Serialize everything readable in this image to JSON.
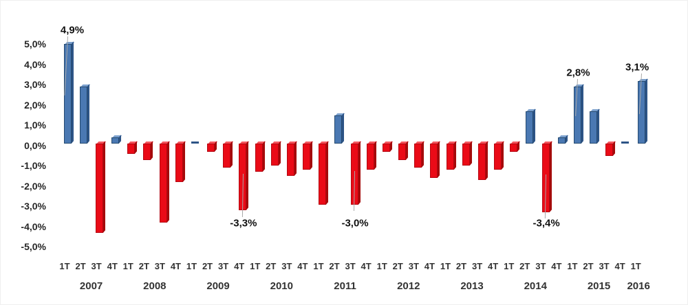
{
  "chart_data": {
    "type": "bar",
    "title": "",
    "xlabel": "",
    "ylabel": "",
    "unit": "%",
    "decimal_style": "comma",
    "grid": false,
    "legend": false,
    "ylim": [
      -5,
      5
    ],
    "y_ticks": [
      "5,0%",
      "4,0%",
      "3,0%",
      "2,0%",
      "1,0%",
      "0,0%",
      "-1,0%",
      "-2,0%",
      "-3,0%",
      "-4,0%",
      "-5,0%"
    ],
    "y_tick_values": [
      5,
      4,
      3,
      2,
      1,
      0,
      -1,
      -2,
      -3,
      -4,
      -5
    ],
    "colors": {
      "positive_bar": "#4a78b2",
      "positive_bar_dark": "#2d5486",
      "negative_bar": "#ea0b17",
      "negative_bar_dark": "#a50b0b",
      "label_text": "#111111",
      "axis_text": "#333333"
    },
    "years": [
      {
        "label": "2007",
        "quarters": [
          "1T",
          "2T",
          "3T",
          "4T"
        ],
        "values": [
          4.9,
          2.8,
          -4.4,
          0.3
        ]
      },
      {
        "label": "2008",
        "quarters": [
          "1T",
          "2T",
          "3T",
          "4T"
        ],
        "values": [
          -0.5,
          -0.8,
          -3.9,
          -1.9
        ]
      },
      {
        "label": "2009",
        "quarters": [
          "1T",
          "2T",
          "3T",
          "4T"
        ],
        "values": [
          0.0,
          -0.4,
          -1.2,
          -3.3
        ]
      },
      {
        "label": "2010",
        "quarters": [
          "1T",
          "2T",
          "3T",
          "4T"
        ],
        "values": [
          -1.4,
          -1.1,
          -1.6,
          -1.3
        ]
      },
      {
        "label": "2011",
        "quarters": [
          "1T",
          "2T",
          "3T",
          "4T"
        ],
        "values": [
          -3.0,
          1.4,
          -3.0,
          -1.3
        ]
      },
      {
        "label": "2012",
        "quarters": [
          "1T",
          "2T",
          "3T",
          "4T"
        ],
        "values": [
          -0.4,
          -0.8,
          -1.2,
          -1.7
        ]
      },
      {
        "label": "2013",
        "quarters": [
          "1T",
          "2T",
          "3T",
          "4T"
        ],
        "values": [
          -1.3,
          -1.1,
          -1.8,
          -1.3
        ]
      },
      {
        "label": "2014",
        "quarters": [
          "1T",
          "2T",
          "3T",
          "4T"
        ],
        "values": [
          -0.4,
          1.6,
          -3.4,
          0.3
        ]
      },
      {
        "label": "2015",
        "quarters": [
          "1T",
          "2T",
          "3T",
          "4T"
        ],
        "values": [
          2.8,
          1.6,
          -0.6,
          0.0
        ]
      },
      {
        "label": "2016",
        "quarters": [
          "1T"
        ],
        "values": [
          3.1
        ]
      }
    ],
    "data_labels": [
      {
        "index": 0,
        "year": "2007",
        "quarter": "1T",
        "text": "4,9%"
      },
      {
        "index": 11,
        "year": "2009",
        "quarter": "4T",
        "text": "-3,3%"
      },
      {
        "index": 18,
        "year": "2011",
        "quarter": "3T",
        "text": "-3,0%"
      },
      {
        "index": 30,
        "year": "2014",
        "quarter": "3T",
        "text": "-3,4%"
      },
      {
        "index": 32,
        "year": "2015",
        "quarter": "1T",
        "text": "2,8%"
      },
      {
        "index": 36,
        "year": "2016",
        "quarter": "1T",
        "text": "3,1%"
      }
    ]
  }
}
